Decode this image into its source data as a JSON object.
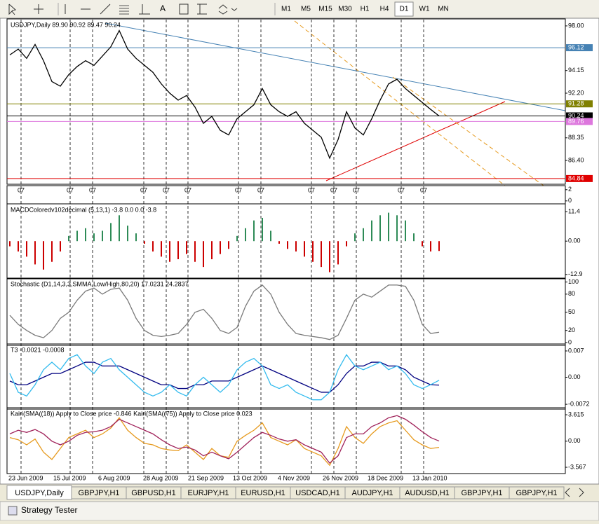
{
  "toolbar": {
    "text_tool": "A",
    "timeframes": [
      "M1",
      "M5",
      "M15",
      "M30",
      "H1",
      "H4",
      "D1",
      "W1",
      "MN"
    ],
    "active_timeframe": 6
  },
  "panels": [
    {
      "kind": "line",
      "title": "USDJPY,Daily  89.90 90.92 89.47 90.24",
      "ylim": [
        84.41,
        98.42
      ],
      "yticks": [
        {
          "value": 98,
          "label": "98.00"
        },
        94.15,
        {
          "value": 92.2,
          "label": "92.20"
        },
        88.35,
        {
          "value": 86.4,
          "label": "86.40"
        }
      ],
      "levels": [
        {
          "value": 96.12,
          "color": "#4682b4"
        },
        {
          "value": 91.28,
          "color": "#808000"
        },
        {
          "value": 90.24,
          "color": "#000000"
        },
        {
          "value": 89.76,
          "color": "#dd77dd"
        },
        {
          "value": 84.84,
          "color": "#e00000"
        }
      ],
      "series": [
        {
          "color": "#000000",
          "values": [
            95.5,
            96.0,
            95.2,
            96.4,
            95.0,
            93.2,
            92.8,
            93.8,
            94.5,
            95.0,
            94.6,
            95.4,
            96.2,
            97.6,
            96.0,
            95.2,
            94.6,
            94.0,
            93.0,
            92.2,
            91.6,
            92.0,
            91.0,
            89.6,
            90.2,
            89.0,
            88.6,
            90.0,
            90.6,
            91.2,
            92.6,
            91.2,
            90.6,
            90.2,
            90.6,
            89.6,
            89.0,
            88.4,
            86.6,
            88.2,
            90.6,
            89.2,
            88.6,
            90.0,
            91.6,
            93.0,
            93.4,
            92.6,
            92.0,
            91.4,
            90.8,
            90.24
          ]
        }
      ]
    },
    {
      "kind": "histogram",
      "title": "MACDColoredv102decimal (5,13,1) -3.8 0.0 0.0 -3.8",
      "ylim": [
        -14.3,
        13.6
      ],
      "yticks": [
        11.4,
        {
          "value": 0,
          "label": "0.00"
        },
        -12.9
      ],
      "up_color": "#2e8b57",
      "down_color": "#cc0000",
      "series": [
        {
          "color": "#cc0000",
          "values": [
            -2,
            -4,
            -6,
            -9,
            -11,
            -8,
            -4,
            2,
            4,
            5,
            3,
            4,
            7,
            10,
            6,
            3,
            -1,
            -4,
            -6,
            -8,
            -7,
            -5,
            -8,
            -10,
            -7,
            -5,
            -3,
            2,
            5,
            8,
            9,
            4,
            -1,
            -3,
            -4,
            -6,
            -8,
            -10,
            -12,
            -9,
            -2,
            3,
            5,
            8,
            10,
            11,
            10,
            8,
            3,
            -2,
            -4,
            -3.8
          ]
        }
      ]
    },
    {
      "kind": "line",
      "title": "Stochastic (D1,14,3,3,SMMA,Low/High,80,20) 17.0231 24.2837",
      "ylim": [
        -3.5,
        103
      ],
      "yticks": [
        100,
        80,
        50,
        20,
        0
      ],
      "series": [
        {
          "color": "#7a7a7a",
          "values": [
            45,
            30,
            20,
            12,
            8,
            20,
            40,
            50,
            70,
            85,
            90,
            80,
            88,
            90,
            70,
            40,
            20,
            12,
            10,
            12,
            15,
            30,
            50,
            55,
            40,
            20,
            15,
            25,
            60,
            85,
            95,
            80,
            50,
            30,
            15,
            12,
            10,
            8,
            5,
            12,
            40,
            70,
            80,
            75,
            85,
            95,
            95,
            93,
            70,
            30,
            15,
            17
          ]
        }
      ]
    },
    {
      "kind": "line",
      "title": "T3 -0.0021 -0.0008",
      "ylim": [
        -0.0083,
        0.0083
      ],
      "yticks": [
        0.007,
        {
          "value": 0,
          "label": "0.00"
        },
        -0.0072
      ],
      "series": [
        {
          "color": "#000080",
          "values": [
            -0.001,
            -0.002,
            -0.002,
            -0.001,
            0,
            0.001,
            0.001,
            0.002,
            0.003,
            0.004,
            0.004,
            0.003,
            0.003,
            0.003,
            0.002,
            0.001,
            0,
            -0.001,
            -0.002,
            -0.002,
            -0.003,
            -0.003,
            -0.002,
            -0.002,
            -0.001,
            -0.001,
            -0.001,
            0,
            0.001,
            0.002,
            0.003,
            0.002,
            0.001,
            0,
            -0.001,
            -0.002,
            -0.003,
            -0.004,
            -0.004,
            -0.002,
            0.001,
            0.003,
            0.003,
            0.004,
            0.004,
            0.003,
            0.003,
            0.002,
            0,
            -0.001,
            -0.002,
            -0.0021
          ]
        },
        {
          "color": "#33bbee",
          "values": [
            0.001,
            -0.004,
            -0.005,
            -0.002,
            0.002,
            0.004,
            0.002,
            0.005,
            0.006,
            0.003,
            0.001,
            0.004,
            0.005,
            0.002,
            0,
            -0.002,
            -0.004,
            -0.005,
            -0.004,
            -0.002,
            -0.004,
            -0.005,
            -0.002,
            0,
            -0.002,
            -0.004,
            -0.002,
            0.002,
            0.004,
            0.005,
            0.003,
            -0.002,
            -0.003,
            -0.002,
            -0.004,
            -0.005,
            -0.006,
            -0.006,
            -0.004,
            0.002,
            0.006,
            0.003,
            0.002,
            0.003,
            0.004,
            0.002,
            0.003,
            0.001,
            -0.002,
            -0.003,
            -0.002,
            -0.0008
          ]
        }
      ]
    },
    {
      "kind": "line",
      "title": "Kairi(SMA((18)) Apply to Close price -0.846  Kairi(SMA((75)) Apply to Close price 0.023",
      "ylim": [
        -4.33,
        4.29
      ],
      "yticks": [
        3.615,
        {
          "value": 0,
          "label": "0.00"
        },
        -3.567
      ],
      "series": [
        {
          "color": "#e69a1e",
          "values": [
            0.5,
            0.2,
            -0.5,
            0.3,
            -1.5,
            -2.5,
            -1,
            0.5,
            1,
            1.5,
            0.5,
            1,
            1.8,
            3.2,
            1.5,
            0.5,
            -0.3,
            -0.5,
            -1,
            -1.2,
            -1.3,
            -0.5,
            -1.5,
            -2.5,
            -1,
            -2,
            -2.2,
            0,
            0.8,
            1.5,
            2.5,
            0.5,
            0,
            -0.5,
            0.2,
            -1,
            -1.5,
            -2,
            -3.3,
            -1,
            2,
            0.5,
            -0.3,
            1,
            2,
            2.5,
            2.8,
            1.5,
            0.2,
            -0.5,
            -1,
            -0.846
          ]
        },
        {
          "color": "#a0225a",
          "values": [
            1,
            1.5,
            1.2,
            1.6,
            1,
            0,
            -0.5,
            0,
            0.8,
            1.2,
            1.3,
            1.5,
            2,
            3,
            2.5,
            2,
            1.5,
            1,
            0.2,
            -0.5,
            -1,
            -0.8,
            -1.2,
            -2,
            -1.5,
            -2,
            -2.4,
            -1.5,
            -0.5,
            0.5,
            1.2,
            0.8,
            0.3,
            0,
            0.2,
            -0.5,
            -1,
            -1.5,
            -3,
            -2,
            0.5,
            1,
            1,
            2,
            2.5,
            3.2,
            3.5,
            3,
            2.2,
            1.3,
            0.5,
            0.023
          ]
        }
      ]
    }
  ],
  "strip": {
    "labels": [
      "07",
      "07",
      "07",
      "07",
      "07",
      "07",
      "07",
      "07",
      "07",
      "07",
      "07",
      "07",
      "07"
    ],
    "ylim": [
      -0.4,
      2.6
    ],
    "yticks": [
      2,
      0
    ]
  },
  "dates": [
    "23 Jun 2009",
    "15 Jul 2009",
    "6 Aug 2009",
    "28 Aug 2009",
    "21 Sep 2009",
    "13 Oct 2009",
    "4 Nov 2009",
    "26 Nov 2009",
    "18 Dec 2009",
    "13 Jan 2010"
  ],
  "tabs": {
    "items": [
      "USDJPY,Daily",
      "GBPJPY,H1",
      "GBPUSD,H1",
      "EURJPY,H1",
      "EURUSD,H1",
      "USDCAD,H1",
      "AUDJPY,H1",
      "AUDUSD,H1",
      "GBPJPY,H1",
      "GBPJPY,H1"
    ],
    "active": 0
  },
  "footer": {
    "label": "Strategy Tester"
  }
}
